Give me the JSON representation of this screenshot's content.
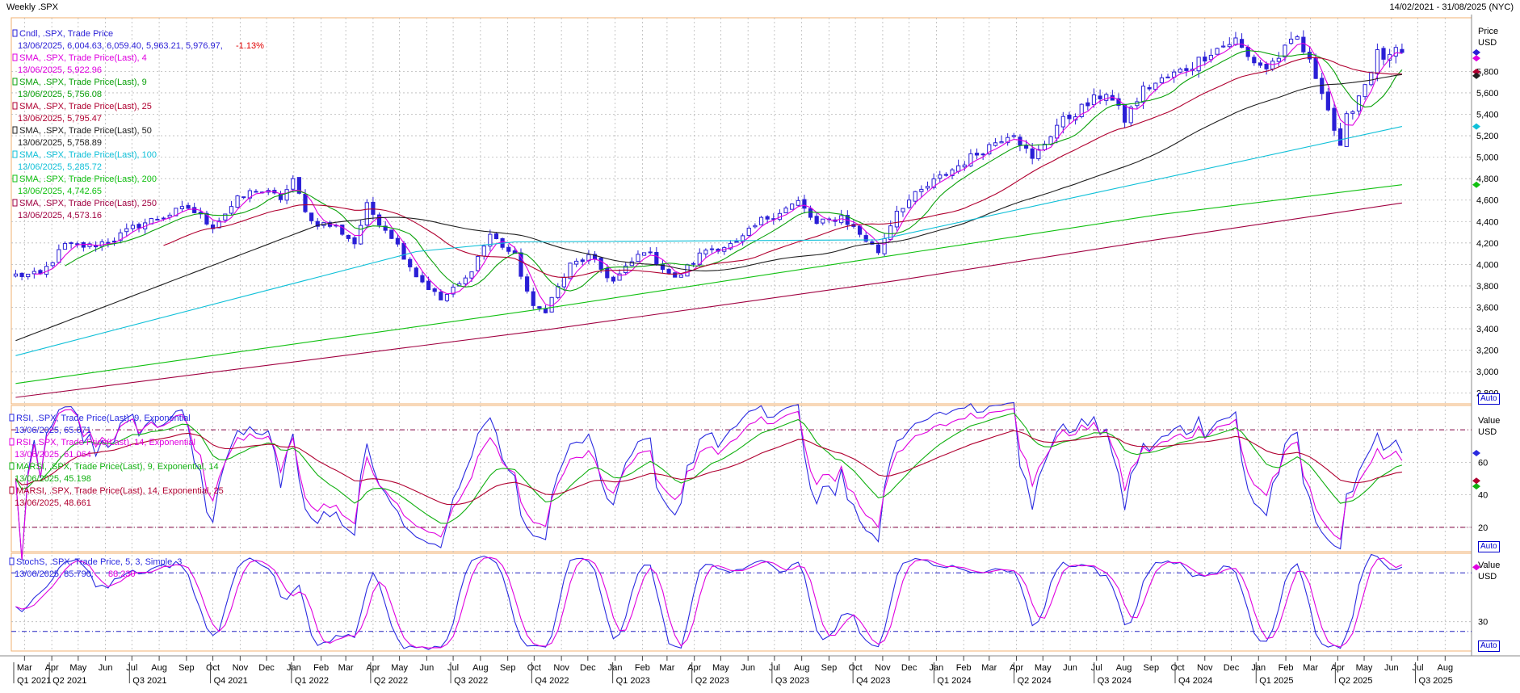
{
  "header": {
    "title": "Weekly .SPX",
    "date_range": "14/02/2021 - 31/08/2025 (NYC)"
  },
  "colors": {
    "candle": "#2a1fd6",
    "sma4": "#e000e0",
    "sma9": "#0aa10a",
    "sma25": "#b00030",
    "sma50": "#202020",
    "sma100": "#10c0d8",
    "sma200": "#10c010",
    "sma250": "#a00040",
    "rsi9": "#2a2ae0",
    "rsi14": "#e000e0",
    "marsi9": "#10b010",
    "marsi14": "#b00030",
    "stoch_k": "#2a2ae0",
    "stoch_d": "#e000e0",
    "grid": "#b8b8b8",
    "frame": "#f0b070"
  },
  "price_panel": {
    "legend": [
      {
        "label": "Cndl, .SPX, Trade Price",
        "value": "13/06/2025, 6,004.63, 6,059.40, 5,963.21, 5,976.97,",
        "change": "-1.13%",
        "color": "#2a1fd6"
      },
      {
        "label": "SMA, .SPX, Trade Price(Last),  4",
        "value": "13/06/2025, 5,922.96",
        "color": "#e000e0"
      },
      {
        "label": "SMA, .SPX, Trade Price(Last),  9",
        "value": "13/06/2025, 5,756.08",
        "color": "#0aa10a"
      },
      {
        "label": "SMA, .SPX, Trade Price(Last),  25",
        "value": "13/06/2025, 5,795.47",
        "color": "#b00030"
      },
      {
        "label": "SMA, .SPX, Trade Price(Last),  50",
        "value": "13/06/2025, 5,758.89",
        "color": "#202020"
      },
      {
        "label": "SMA, .SPX, Trade Price(Last),  100",
        "value": "13/06/2025, 5,285.72",
        "color": "#10c0d8"
      },
      {
        "label": "SMA, .SPX, Trade Price(Last),  200",
        "value": "13/06/2025, 4,742.65",
        "color": "#10c010"
      },
      {
        "label": "SMA, .SPX, Trade Price(Last),  250",
        "value": "13/06/2025, 4,573.16",
        "color": "#a00040"
      }
    ],
    "axis_title": "Price",
    "axis_unit": "USD",
    "auto_label": "Auto"
  },
  "rsi_panel": {
    "legend": [
      {
        "label": "RSI, .SPX, Trade Price(Last),  9, Exponential",
        "value": "13/06/2025, 65.671",
        "color": "#2a2ae0"
      },
      {
        "label": "RSI, .SPX, Trade Price(Last),  14, Exponential",
        "value": "13/06/2025, 61.064",
        "color": "#e000e0"
      },
      {
        "label": "MARSI, .SPX, Trade Price(Last),  9, Exponential, 14",
        "value": "13/06/2025, 45.198",
        "color": "#10b010"
      },
      {
        "label": "MARSI, .SPX, Trade Price(Last),  14, Exponential, 25",
        "value": "13/06/2025, 48.661",
        "color": "#b00030"
      }
    ],
    "axis_title": "Value",
    "axis_unit": "USD",
    "auto_label": "Auto"
  },
  "stoch_panel": {
    "legend": [
      {
        "label": "StochS, .SPX, Trade Price,  5, 3, Simple, 3",
        "value": "13/06/2025, 85.790,",
        "value2": "88.230",
        "color": "#2a2ae0"
      }
    ],
    "axis_title": "Value",
    "axis_unit": "USD",
    "auto_label": "Auto"
  },
  "chart_data": [
    {
      "type": "line",
      "subtype": "candlestick",
      "title": "Weekly .SPX",
      "x_range": [
        "2021-02-14",
        "2025-08-31"
      ],
      "ylim": [
        2700,
        6300
      ],
      "yticks": [
        2800,
        3000,
        3200,
        3400,
        3600,
        3800,
        4000,
        4200,
        4400,
        4600,
        4800,
        5000,
        5200,
        5400,
        5600,
        5800
      ],
      "ytick_labels": [
        "2,800",
        "3,000",
        "3,200",
        "3,400",
        "3,600",
        "3,800",
        "4,000",
        "4,200",
        "4,400",
        "4,600",
        "4,800",
        "5,000",
        "5,200",
        "5,400",
        "5,600",
        "5,800"
      ],
      "grid": true,
      "price_close_anchors": [
        [
          "2021-02-19",
          3900
        ],
        [
          "2021-03-19",
          3900
        ],
        [
          "2021-04-16",
          4180
        ],
        [
          "2021-05-14",
          4170
        ],
        [
          "2021-06-11",
          4240
        ],
        [
          "2021-07-09",
          4370
        ],
        [
          "2021-08-13",
          4470
        ],
        [
          "2021-09-03",
          4530
        ],
        [
          "2021-10-01",
          4360
        ],
        [
          "2021-10-29",
          4600
        ],
        [
          "2021-11-19",
          4700
        ],
        [
          "2021-12-17",
          4620
        ],
        [
          "2021-12-31",
          4770
        ],
        [
          "2022-01-21",
          4400
        ],
        [
          "2022-02-18",
          4350
        ],
        [
          "2022-03-11",
          4200
        ],
        [
          "2022-03-25",
          4540
        ],
        [
          "2022-04-22",
          4270
        ],
        [
          "2022-05-20",
          3900
        ],
        [
          "2022-06-17",
          3670
        ],
        [
          "2022-07-15",
          3860
        ],
        [
          "2022-08-12",
          4280
        ],
        [
          "2022-09-09",
          4070
        ],
        [
          "2022-09-30",
          3590
        ],
        [
          "2022-10-14",
          3580
        ],
        [
          "2022-11-11",
          3990
        ],
        [
          "2022-12-02",
          4070
        ],
        [
          "2022-12-30",
          3840
        ],
        [
          "2023-02-03",
          4140
        ],
        [
          "2023-03-10",
          3860
        ],
        [
          "2023-04-14",
          4140
        ],
        [
          "2023-05-19",
          4190
        ],
        [
          "2023-06-16",
          4410
        ],
        [
          "2023-07-28",
          4580
        ],
        [
          "2023-08-18",
          4370
        ],
        [
          "2023-09-15",
          4450
        ],
        [
          "2023-10-27",
          4120
        ],
        [
          "2023-11-17",
          4510
        ],
        [
          "2023-12-29",
          4770
        ],
        [
          "2024-02-02",
          4960
        ],
        [
          "2024-03-28",
          5250
        ],
        [
          "2024-04-19",
          4970
        ],
        [
          "2024-05-17",
          5300
        ],
        [
          "2024-07-12",
          5610
        ],
        [
          "2024-08-02",
          5350
        ],
        [
          "2024-08-23",
          5630
        ],
        [
          "2024-10-18",
          5860
        ],
        [
          "2024-11-08",
          5990
        ],
        [
          "2024-12-06",
          6090
        ],
        [
          "2024-12-20",
          5930
        ],
        [
          "2025-01-10",
          5830
        ],
        [
          "2025-02-14",
          6110
        ],
        [
          "2025-03-14",
          5640
        ],
        [
          "2025-04-04",
          5070
        ],
        [
          "2025-04-11",
          5360
        ],
        [
          "2025-05-02",
          5690
        ],
        [
          "2025-05-16",
          5960
        ],
        [
          "2025-05-30",
          5910
        ],
        [
          "2025-06-06",
          6000
        ],
        [
          "2025-06-13",
          5977
        ]
      ],
      "last_candle": {
        "date": "2025-06-13",
        "open": 6004.63,
        "high": 6059.4,
        "low": 5963.21,
        "close": 5976.97,
        "change_pct": -1.13
      },
      "series": [
        {
          "name": "SMA 4",
          "last": 5922.96
        },
        {
          "name": "SMA 9",
          "last": 5756.08
        },
        {
          "name": "SMA 25",
          "last": 5795.47
        },
        {
          "name": "SMA 50",
          "last": 5758.89
        },
        {
          "name": "SMA 100",
          "last": 5285.72,
          "points": [
            [
              "2021-02-19",
              3150
            ],
            [
              "2022-05-20",
              4120
            ],
            [
              "2022-09-09",
              4210
            ],
            [
              "2023-10-27",
              4230
            ],
            [
              "2024-06-14",
              4640
            ],
            [
              "2025-06-13",
              5286
            ]
          ]
        },
        {
          "name": "SMA 200",
          "last": 4742.65,
          "points": [
            [
              "2021-02-19",
              2890
            ],
            [
              "2022-10-14",
              3590
            ],
            [
              "2023-11-17",
              4090
            ],
            [
              "2024-09-06",
              4460
            ],
            [
              "2025-06-13",
              4743
            ]
          ]
        },
        {
          "name": "SMA 250",
          "last": 4573.16,
          "points": [
            [
              "2021-02-19",
              2760
            ],
            [
              "2022-10-14",
              3390
            ],
            [
              "2023-11-17",
              3850
            ],
            [
              "2024-09-06",
              4230
            ],
            [
              "2025-06-13",
              4573
            ]
          ]
        }
      ]
    },
    {
      "type": "line",
      "title": "RSI",
      "ylim": [
        5,
        95
      ],
      "yticks": [
        20,
        40,
        60
      ],
      "ytick_labels": [
        "20",
        "40",
        "60"
      ],
      "reference_lines": [
        80,
        20
      ],
      "grid": true,
      "series": [
        {
          "name": "RSI 9",
          "last": 65.671
        },
        {
          "name": "RSI 14",
          "last": 61.064
        },
        {
          "name": "MARSI 9/14",
          "last": 45.198
        },
        {
          "name": "MARSI 14/25",
          "last": 48.661
        }
      ]
    },
    {
      "type": "line",
      "title": "StochS",
      "ylim": [
        0,
        100
      ],
      "yticks": [
        30
      ],
      "ytick_labels": [
        "30"
      ],
      "reference_lines": [
        80,
        20
      ],
      "grid": true,
      "series": [
        {
          "name": "%K",
          "last": 85.79
        },
        {
          "name": "%D",
          "last": 88.23
        }
      ]
    }
  ],
  "x_axis": {
    "months": [
      {
        "date": "2021-03-01",
        "label": "Mar"
      },
      {
        "date": "2021-04-01",
        "label": "Apr"
      },
      {
        "date": "2021-05-01",
        "label": "May"
      },
      {
        "date": "2021-06-01",
        "label": "Jun"
      },
      {
        "date": "2021-07-01",
        "label": "Jul"
      },
      {
        "date": "2021-08-01",
        "label": "Aug"
      },
      {
        "date": "2021-09-01",
        "label": "Sep"
      },
      {
        "date": "2021-10-01",
        "label": "Oct"
      },
      {
        "date": "2021-11-01",
        "label": "Nov"
      },
      {
        "date": "2021-12-01",
        "label": "Dec"
      },
      {
        "date": "2022-01-01",
        "label": "Jan"
      },
      {
        "date": "2022-02-01",
        "label": "Feb"
      },
      {
        "date": "2022-03-01",
        "label": "Mar"
      },
      {
        "date": "2022-04-01",
        "label": "Apr"
      },
      {
        "date": "2022-05-01",
        "label": "May"
      },
      {
        "date": "2022-06-01",
        "label": "Jun"
      },
      {
        "date": "2022-07-01",
        "label": "Jul"
      },
      {
        "date": "2022-08-01",
        "label": "Aug"
      },
      {
        "date": "2022-09-01",
        "label": "Sep"
      },
      {
        "date": "2022-10-01",
        "label": "Oct"
      },
      {
        "date": "2022-11-01",
        "label": "Nov"
      },
      {
        "date": "2022-12-01",
        "label": "Dec"
      },
      {
        "date": "2023-01-01",
        "label": "Jan"
      },
      {
        "date": "2023-02-01",
        "label": "Feb"
      },
      {
        "date": "2023-03-01",
        "label": "Mar"
      },
      {
        "date": "2023-04-01",
        "label": "Apr"
      },
      {
        "date": "2023-05-01",
        "label": "May"
      },
      {
        "date": "2023-06-01",
        "label": "Jun"
      },
      {
        "date": "2023-07-01",
        "label": "Jul"
      },
      {
        "date": "2023-08-01",
        "label": "Aug"
      },
      {
        "date": "2023-09-01",
        "label": "Sep"
      },
      {
        "date": "2023-10-01",
        "label": "Oct"
      },
      {
        "date": "2023-11-01",
        "label": "Nov"
      },
      {
        "date": "2023-12-01",
        "label": "Dec"
      },
      {
        "date": "2024-01-01",
        "label": "Jan"
      },
      {
        "date": "2024-02-01",
        "label": "Feb"
      },
      {
        "date": "2024-03-01",
        "label": "Mar"
      },
      {
        "date": "2024-04-01",
        "label": "Apr"
      },
      {
        "date": "2024-05-01",
        "label": "May"
      },
      {
        "date": "2024-06-01",
        "label": "Jun"
      },
      {
        "date": "2024-07-01",
        "label": "Jul"
      },
      {
        "date": "2024-08-01",
        "label": "Aug"
      },
      {
        "date": "2024-09-01",
        "label": "Sep"
      },
      {
        "date": "2024-10-01",
        "label": "Oct"
      },
      {
        "date": "2024-11-01",
        "label": "Nov"
      },
      {
        "date": "2024-12-01",
        "label": "Dec"
      },
      {
        "date": "2025-01-01",
        "label": "Jan"
      },
      {
        "date": "2025-02-01",
        "label": "Feb"
      },
      {
        "date": "2025-03-01",
        "label": "Mar"
      },
      {
        "date": "2025-04-01",
        "label": "Apr"
      },
      {
        "date": "2025-05-01",
        "label": "May"
      },
      {
        "date": "2025-06-01",
        "label": "Jun"
      },
      {
        "date": "2025-07-01",
        "label": "Jul"
      },
      {
        "date": "2025-08-01",
        "label": "Aug"
      }
    ],
    "quarters": [
      {
        "date": "2021-01-01",
        "label": "Q1 2021"
      },
      {
        "date": "2021-04-01",
        "label": "Q2 2021"
      },
      {
        "date": "2021-07-01",
        "label": "Q3 2021"
      },
      {
        "date": "2021-10-01",
        "label": "Q4 2021"
      },
      {
        "date": "2022-01-01",
        "label": "Q1 2022"
      },
      {
        "date": "2022-04-01",
        "label": "Q2 2022"
      },
      {
        "date": "2022-07-01",
        "label": "Q3 2022"
      },
      {
        "date": "2022-10-01",
        "label": "Q4 2022"
      },
      {
        "date": "2023-01-01",
        "label": "Q1 2023"
      },
      {
        "date": "2023-04-01",
        "label": "Q2 2023"
      },
      {
        "date": "2023-07-01",
        "label": "Q3 2023"
      },
      {
        "date": "2023-10-01",
        "label": "Q4 2023"
      },
      {
        "date": "2024-01-01",
        "label": "Q1 2024"
      },
      {
        "date": "2024-04-01",
        "label": "Q2 2024"
      },
      {
        "date": "2024-07-01",
        "label": "Q3 2024"
      },
      {
        "date": "2024-10-01",
        "label": "Q4 2024"
      },
      {
        "date": "2025-01-01",
        "label": "Q1 2025"
      },
      {
        "date": "2025-04-01",
        "label": "Q2 2025"
      },
      {
        "date": "2025-07-01",
        "label": "Q3 2025"
      }
    ]
  }
}
